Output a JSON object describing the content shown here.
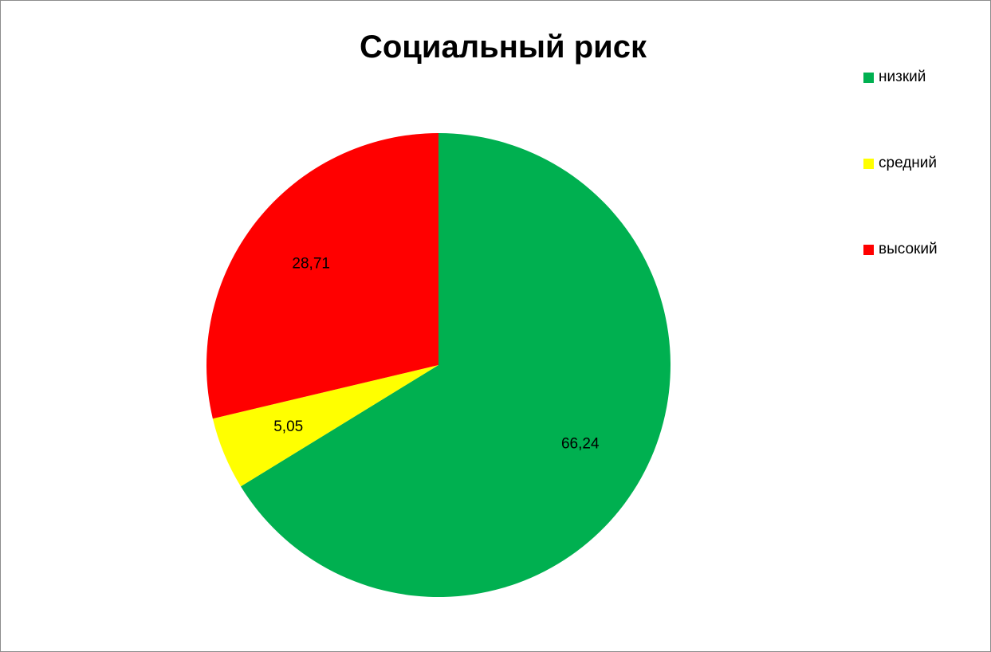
{
  "chart_data": {
    "type": "pie",
    "title": "Социальный риск",
    "categories": [
      "низкий",
      "средний",
      "высокий"
    ],
    "values": [
      66.24,
      5.05,
      28.71
    ],
    "value_labels": [
      "66,24",
      "5,05",
      "28,71"
    ],
    "colors": [
      "#00b050",
      "#ffff00",
      "#ff0000"
    ],
    "start_angle": "12 o'clock",
    "direction": "clockwise",
    "legend_position": "right"
  }
}
